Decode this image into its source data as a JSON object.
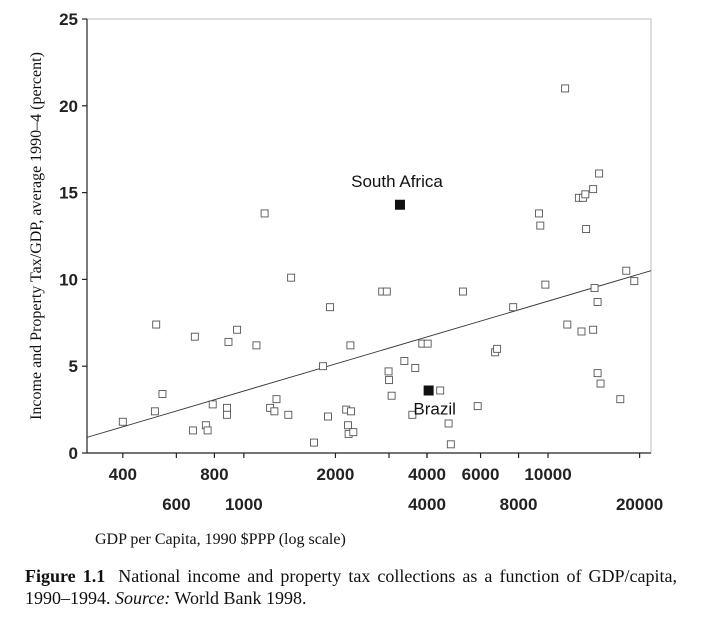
{
  "chart_data": {
    "type": "scatter",
    "xscale": "log",
    "xlabel": "GDP per Capita, 1990 $PPP (log scale)",
    "ylabel": "Income and Property Tax/GDP, average 1990–4 (percent)",
    "xlim": [
      305,
      21800
    ],
    "ylim": [
      0,
      25
    ],
    "xticks_upper": [
      400,
      800,
      2000,
      4000,
      6000,
      10000
    ],
    "xticks_lower": [
      600,
      1000,
      4000,
      8000,
      20000
    ],
    "xticks_lower_labeled": [
      600,
      1000,
      8000,
      20000
    ],
    "xticks_minor": [
      3000
    ],
    "yticks": [
      0,
      5,
      10,
      15,
      20,
      25
    ],
    "grid": false,
    "points": [
      {
        "x": 400,
        "y": 1.8
      },
      {
        "x": 510,
        "y": 2.4
      },
      {
        "x": 515,
        "y": 7.4
      },
      {
        "x": 540,
        "y": 3.4
      },
      {
        "x": 680,
        "y": 1.3
      },
      {
        "x": 690,
        "y": 6.7
      },
      {
        "x": 750,
        "y": 1.6
      },
      {
        "x": 760,
        "y": 1.3
      },
      {
        "x": 790,
        "y": 2.8
      },
      {
        "x": 880,
        "y": 2.6
      },
      {
        "x": 880,
        "y": 2.2
      },
      {
        "x": 890,
        "y": 6.4
      },
      {
        "x": 950,
        "y": 7.1
      },
      {
        "x": 1100,
        "y": 6.2
      },
      {
        "x": 1170,
        "y": 13.8
      },
      {
        "x": 1220,
        "y": 2.6
      },
      {
        "x": 1260,
        "y": 2.4
      },
      {
        "x": 1280,
        "y": 3.1
      },
      {
        "x": 1400,
        "y": 2.2
      },
      {
        "x": 1430,
        "y": 10.1
      },
      {
        "x": 1700,
        "y": 0.6
      },
      {
        "x": 1820,
        "y": 5.0
      },
      {
        "x": 1890,
        "y": 2.1
      },
      {
        "x": 1920,
        "y": 8.4
      },
      {
        "x": 2170,
        "y": 2.5
      },
      {
        "x": 2200,
        "y": 1.6
      },
      {
        "x": 2210,
        "y": 1.1
      },
      {
        "x": 2240,
        "y": 6.2
      },
      {
        "x": 2250,
        "y": 2.4
      },
      {
        "x": 2290,
        "y": 1.2
      },
      {
        "x": 2850,
        "y": 9.3
      },
      {
        "x": 2950,
        "y": 9.3
      },
      {
        "x": 2990,
        "y": 4.7
      },
      {
        "x": 3000,
        "y": 4.2
      },
      {
        "x": 3060,
        "y": 3.3
      },
      {
        "x": 3370,
        "y": 5.3
      },
      {
        "x": 3580,
        "y": 2.2
      },
      {
        "x": 3660,
        "y": 4.9
      },
      {
        "x": 3860,
        "y": 6.3
      },
      {
        "x": 4020,
        "y": 6.3
      },
      {
        "x": 4420,
        "y": 3.6
      },
      {
        "x": 4710,
        "y": 1.7
      },
      {
        "x": 4790,
        "y": 0.5
      },
      {
        "x": 5250,
        "y": 9.3
      },
      {
        "x": 5870,
        "y": 2.7
      },
      {
        "x": 6700,
        "y": 5.8
      },
      {
        "x": 6800,
        "y": 6.0
      },
      {
        "x": 7680,
        "y": 8.4
      },
      {
        "x": 9340,
        "y": 13.8
      },
      {
        "x": 9430,
        "y": 13.1
      },
      {
        "x": 9800,
        "y": 9.7
      },
      {
        "x": 11380,
        "y": 21.0
      },
      {
        "x": 11570,
        "y": 7.4
      },
      {
        "x": 12630,
        "y": 14.7
      },
      {
        "x": 12880,
        "y": 7.0
      },
      {
        "x": 13020,
        "y": 14.7
      },
      {
        "x": 13260,
        "y": 14.9
      },
      {
        "x": 13340,
        "y": 12.9
      },
      {
        "x": 14070,
        "y": 15.2
      },
      {
        "x": 14070,
        "y": 7.1
      },
      {
        "x": 14220,
        "y": 9.5
      },
      {
        "x": 14720,
        "y": 16.1
      },
      {
        "x": 14550,
        "y": 8.7
      },
      {
        "x": 14550,
        "y": 4.6
      },
      {
        "x": 14880,
        "y": 4.0
      },
      {
        "x": 17280,
        "y": 3.1
      },
      {
        "x": 18080,
        "y": 10.5
      },
      {
        "x": 19210,
        "y": 9.9
      }
    ],
    "highlighted": [
      {
        "label": "South Africa",
        "x": 3260,
        "y": 14.3
      },
      {
        "label": "Brazil",
        "x": 4050,
        "y": 3.6
      }
    ],
    "trendline": {
      "x": [
        305,
        21800
      ],
      "y": [
        0.9,
        10.5
      ]
    }
  },
  "caption": {
    "label": "Figure 1.1",
    "text": "National income and property tax collections as a function of GDP/capita, 1990–1994.",
    "source_label": "Source:",
    "source_text": "World Bank 1998."
  }
}
